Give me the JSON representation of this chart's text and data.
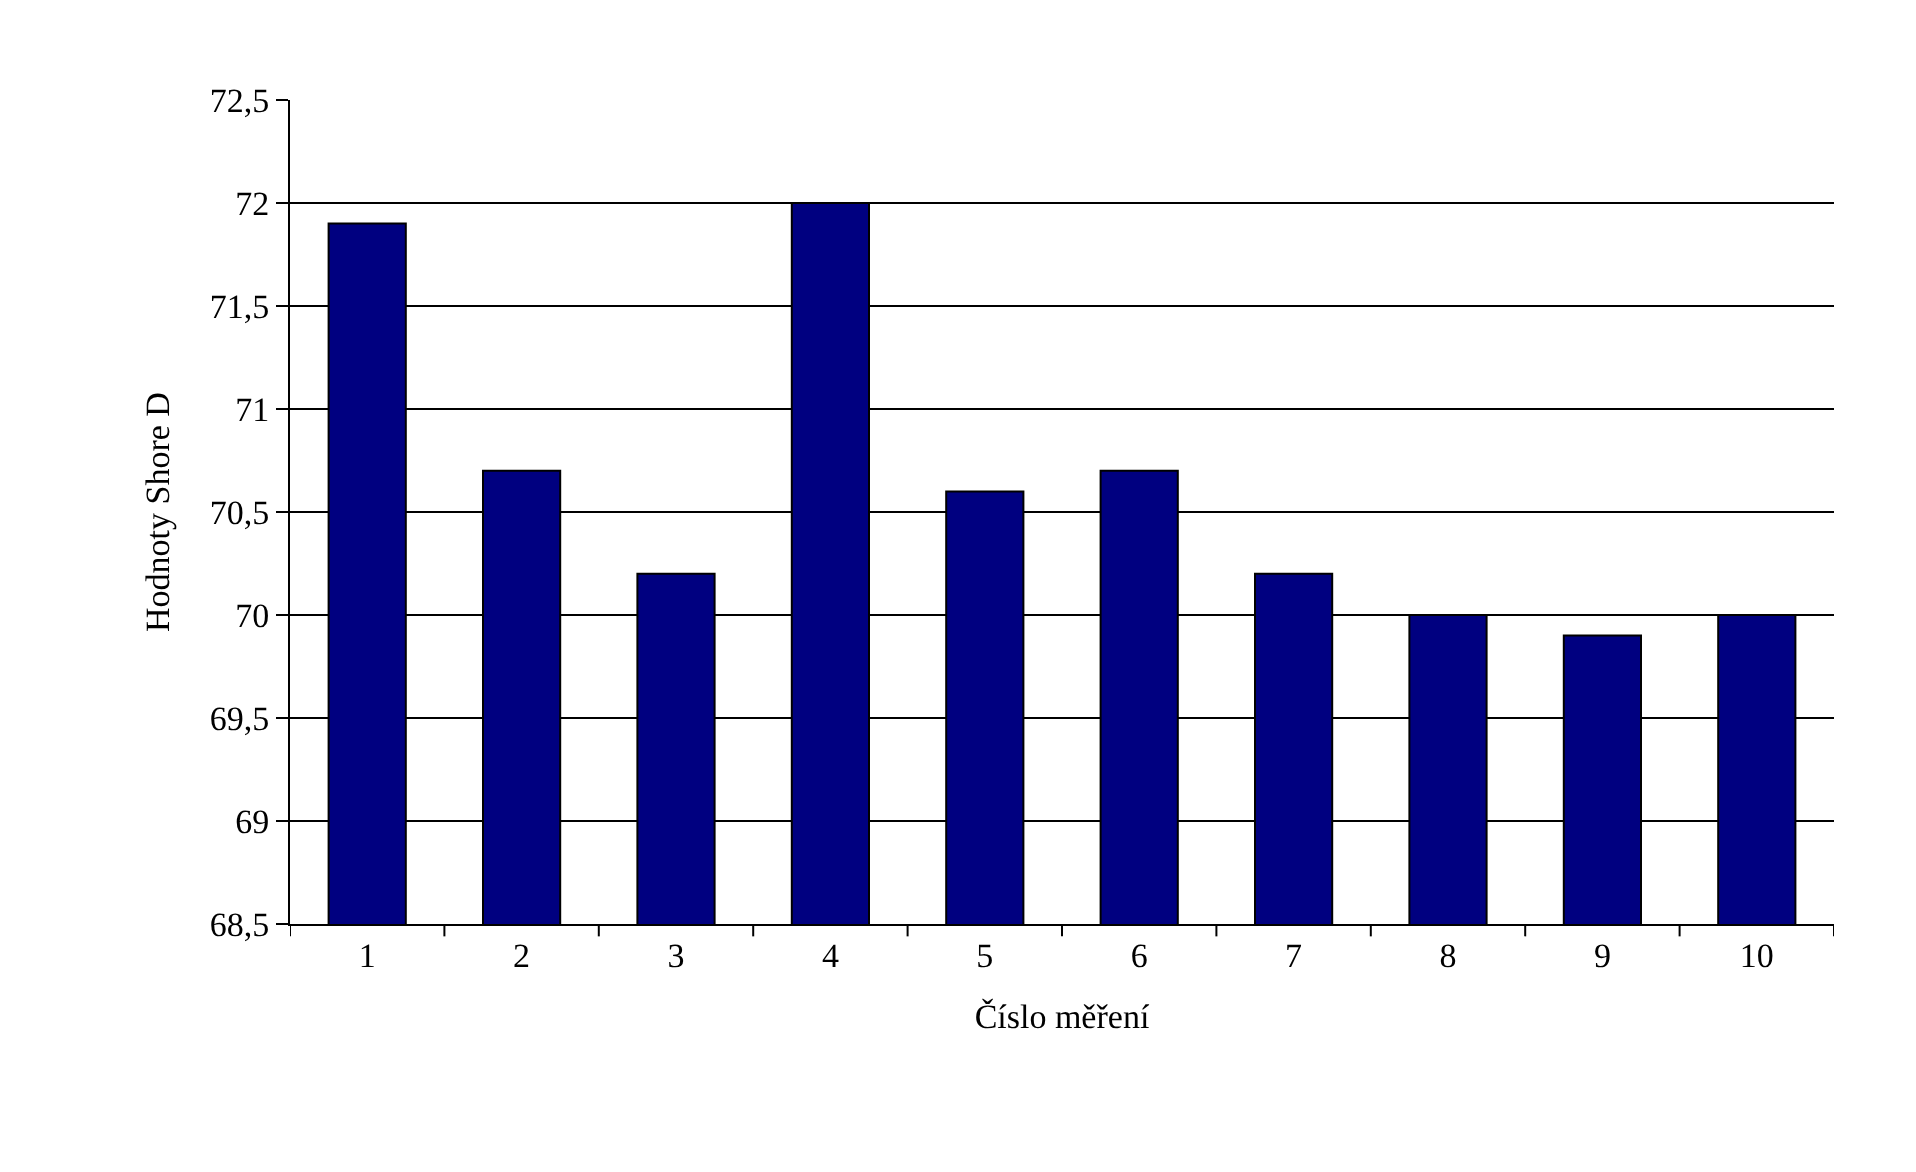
{
  "chart_data": {
    "type": "bar",
    "xlabel": "Číslo měření",
    "ylabel": "Hodnoty Shore D",
    "categories": [
      "1",
      "2",
      "3",
      "4",
      "5",
      "6",
      "7",
      "8",
      "9",
      "10"
    ],
    "values": [
      71.9,
      70.7,
      70.2,
      72,
      70.6,
      70.7,
      70.2,
      70.0,
      69.9,
      70.0
    ],
    "color": "#000080",
    "ylim": [
      68.5,
      72.5
    ],
    "yticks": [
      {
        "value": 68.5,
        "label": "68,5"
      },
      69,
      {
        "value": 69.5,
        "label": "69,5"
      },
      70,
      {
        "value": 70.5,
        "label": "70,5"
      },
      71,
      {
        "value": 71.5,
        "label": "71,5"
      },
      72,
      {
        "value": 72.5,
        "label": "72,5"
      }
    ],
    "grid": "y",
    "legend": false
  }
}
